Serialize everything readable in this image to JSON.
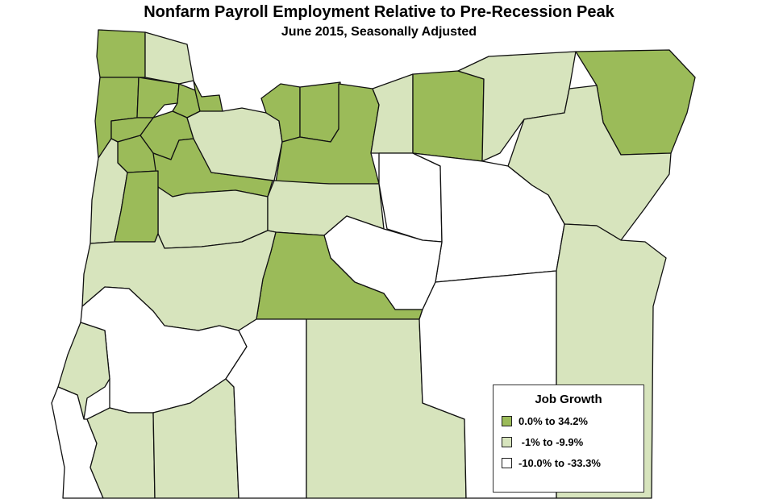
{
  "title": "Nonfarm Payroll Employment Relative to Pre-Recession Peak",
  "subtitle": "June 2015, Seasonally Adjusted",
  "legend": {
    "title": "Job Growth",
    "items": [
      {
        "key": "high",
        "label": "0.0% to 34.2%",
        "color": "#9bbb59"
      },
      {
        "key": "mid",
        "label": " -1% to -9.9%",
        "color": "#d7e4bd"
      },
      {
        "key": "low",
        "label": "-10.0% to -33.3%",
        "color": "#ffffff"
      }
    ]
  }
}
